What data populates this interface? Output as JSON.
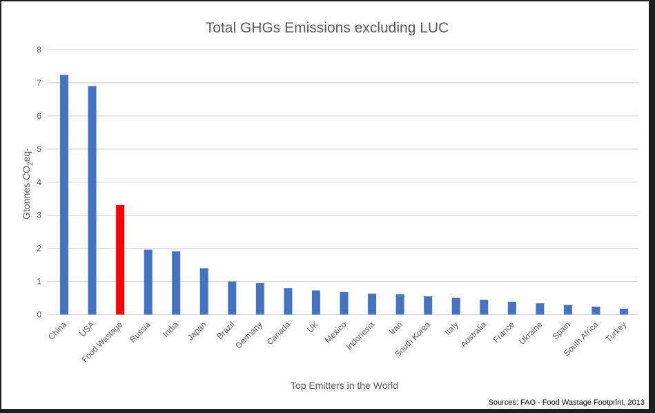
{
  "chart_data": {
    "type": "bar",
    "title": "Total GHGs Emissions excluding LUC",
    "xlabel": "Top Emitters in the World",
    "ylabel": "Gtonnes CO2eq-",
    "ylabel_parts": {
      "pre": "Gtonnes CO",
      "sub": "2",
      "post": "eq-"
    },
    "ylim": [
      0,
      8
    ],
    "yticks": [
      0,
      1,
      2,
      3,
      4,
      5,
      6,
      7,
      8
    ],
    "grid": true,
    "categories": [
      "China",
      "USA",
      "Food Wastage",
      "Russia",
      "India",
      "Japan",
      "Brazil",
      "Germany",
      "Canada",
      "UK",
      "Mexico",
      "Indonesia",
      "Iran",
      "South Korea",
      "Italy",
      "Australia",
      "France",
      "Ukraine",
      "Spain",
      "South Africa",
      "Turkey"
    ],
    "values": [
      7.24,
      6.9,
      3.31,
      1.96,
      1.91,
      1.4,
      1.0,
      0.95,
      0.8,
      0.73,
      0.68,
      0.63,
      0.61,
      0.55,
      0.51,
      0.45,
      0.39,
      0.34,
      0.29,
      0.24,
      0.18
    ],
    "colors": {
      "default": "#4472C4",
      "highlight": "#FF0000",
      "highlight_category": "Food Wastage",
      "grid": "#D9D9D9"
    },
    "source": "Sources: FAO - Food Wastage Footprint, 2013"
  }
}
